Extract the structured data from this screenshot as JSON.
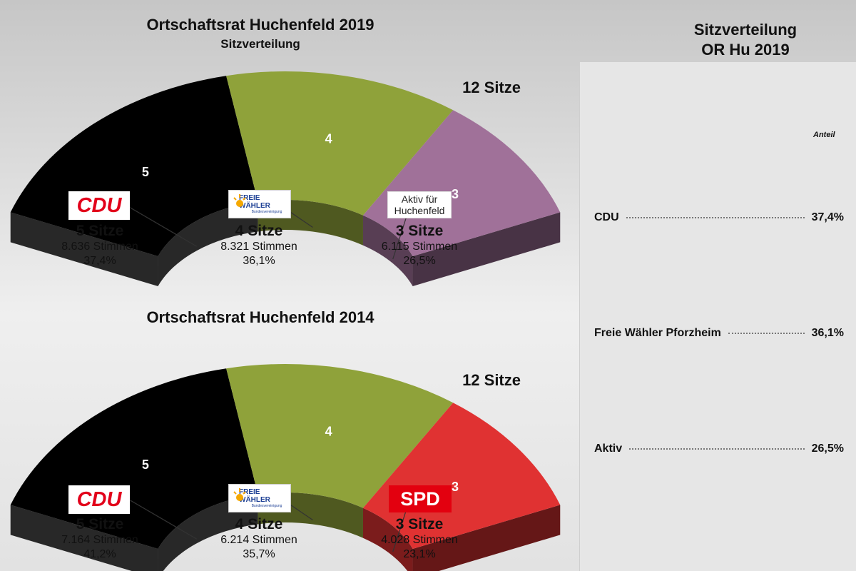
{
  "chart_data": [
    {
      "type": "semicircle",
      "title": "Ortschaftsrat Huchenfeld 2019",
      "subtitle": "Sitzverteilung",
      "total_label": "12 Sitze",
      "total_seats": 12,
      "parties": [
        {
          "name": "CDU",
          "seats": 5,
          "seats_label": "5 Sitze",
          "votes_label": "8.636 Stimmen",
          "pct_label": "37,4%",
          "color": "#000000",
          "logo": "cdu-logo"
        },
        {
          "name": "Freie Wähler",
          "seats": 4,
          "seats_label": "4 Sitze",
          "votes_label": "8.321 Stimmen",
          "pct_label": "36,1%",
          "color": "#8fa23a",
          "logo": "freie-waehler-logo"
        },
        {
          "name": "Aktiv für Huchenfeld",
          "seats": 3,
          "seats_label": "3 Sitze",
          "votes_label": "6.115 Stimmen",
          "pct_label": "26,5%",
          "color": "#a07199",
          "logo": "aktiv-logo"
        }
      ]
    },
    {
      "type": "semicircle",
      "title": "Ortschaftsrat Huchenfeld 2014",
      "subtitle": "",
      "total_label": "12 Sitze",
      "total_seats": 12,
      "parties": [
        {
          "name": "CDU",
          "seats": 5,
          "seats_label": "5 Sitze",
          "votes_label": "7.164 Stimmen",
          "pct_label": "41,2%",
          "color": "#000000",
          "logo": "cdu-logo"
        },
        {
          "name": "Freie Wähler",
          "seats": 4,
          "seats_label": "4 Sitze",
          "votes_label": "6.214 Stimmen",
          "pct_label": "35,7%",
          "color": "#8fa23a",
          "logo": "freie-waehler-logo"
        },
        {
          "name": "SPD",
          "seats": 3,
          "seats_label": "3 Sitze",
          "votes_label": "4.028 Stimmen",
          "pct_label": "23,1%",
          "color": "#e03232",
          "logo": "spd-logo"
        }
      ]
    }
  ],
  "logos": {
    "cdu": "CDU",
    "fw_main": "FREIE WÄHLER",
    "fw_sub": "Bundesvereinigung",
    "aktiv_line1": "Aktiv für",
    "aktiv_line2": "Huchenfeld",
    "spd": "SPD"
  },
  "right_panel": {
    "title_line1": "Sitzverteilung",
    "title_line2": "OR Hu 2019",
    "column_header": "Anteil",
    "rows": [
      {
        "label": "CDU",
        "value": "37,4%"
      },
      {
        "label": "Freie Wähler Pforzheim",
        "value": "36,1%"
      },
      {
        "label": "Aktiv",
        "value": "26,5%"
      }
    ]
  }
}
